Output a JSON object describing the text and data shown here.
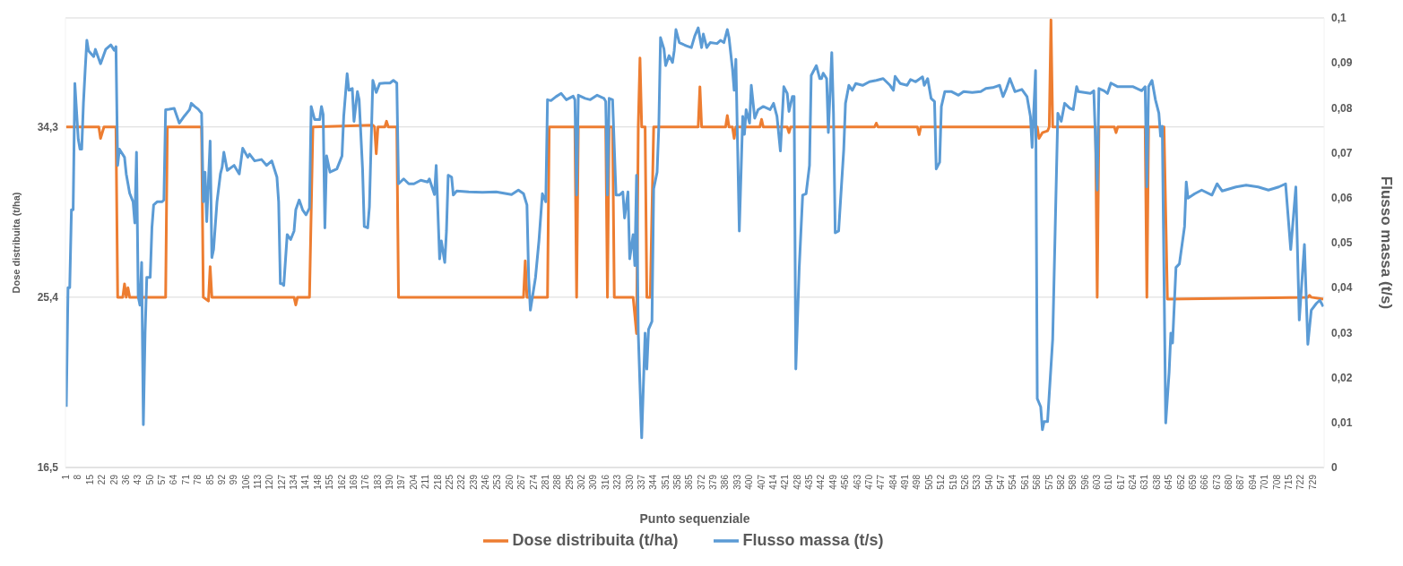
{
  "chart_data": {
    "type": "line",
    "xlabel": "Punto sequenziale",
    "ylabel": "Dose distribuita (t/ha)",
    "y2label": "Flusso massa (t/s)",
    "xlim": [
      0.5,
      735.5
    ],
    "xticks": [
      1,
      8,
      15,
      22,
      29,
      36,
      43,
      50,
      57,
      64,
      71,
      78,
      85,
      92,
      99,
      106,
      113,
      120,
      127,
      134,
      141,
      148,
      155,
      162,
      169,
      176,
      183,
      190,
      197,
      204,
      211,
      218,
      225,
      232,
      239,
      246,
      253,
      260,
      267,
      274,
      281,
      288,
      295,
      302,
      309,
      316,
      323,
      330,
      337,
      344,
      351,
      358,
      365,
      372,
      379,
      386,
      393,
      400,
      407,
      414,
      421,
      428,
      435,
      442,
      449,
      456,
      463,
      470,
      477,
      484,
      491,
      498,
      505,
      512,
      519,
      526,
      533,
      540,
      547,
      554,
      561,
      568,
      575,
      582,
      589,
      596,
      603,
      610,
      617,
      624,
      631,
      638,
      645,
      652,
      659,
      666,
      673,
      680,
      687,
      694,
      701,
      708,
      715,
      722,
      729
    ],
    "ylim": [
      16.5,
      40
    ],
    "yticks": [
      {
        "value": 16.5,
        "label": "16,5"
      },
      {
        "value": 25.4,
        "label": "25,4"
      },
      {
        "value": 34.3,
        "label": "34,3"
      }
    ],
    "y2lim": [
      0,
      0.1
    ],
    "y2ticks": [
      0,
      {
        "value": 0.01,
        "label": "0,01"
      },
      {
        "value": 0.02,
        "label": "0,02"
      },
      {
        "value": 0.03,
        "label": "0,03"
      },
      {
        "value": 0.04,
        "label": "0,04"
      },
      {
        "value": 0.05,
        "label": "0,05"
      },
      {
        "value": 0.06,
        "label": "0,06"
      },
      {
        "value": 0.07,
        "label": "0,07"
      },
      {
        "value": 0.08,
        "label": "0,08"
      },
      {
        "value": 0.09,
        "label": "0,09"
      },
      {
        "value": 0.1,
        "label": "0,1"
      }
    ],
    "grid": "y",
    "legend": "bottom",
    "marker": "none",
    "line_style": "solid",
    "series": [
      {
        "name": "Dose distribuita (t/ha)",
        "color": "#ed7d31",
        "x": [
          1,
          20,
          21,
          23,
          30,
          31,
          34,
          35,
          36,
          37,
          38,
          59,
          60,
          80,
          81,
          84,
          85,
          86,
          134,
          135,
          136,
          143,
          145,
          180,
          181,
          182,
          183,
          187,
          188,
          189,
          194,
          195,
          268,
          269,
          270,
          282,
          283,
          298,
          299,
          300,
          316,
          317,
          318,
          320,
          321,
          332,
          334,
          335,
          336,
          337,
          339,
          340,
          342,
          344,
          370,
          371,
          372,
          386,
          387,
          388,
          390,
          391,
          392,
          406,
          407,
          408,
          422,
          423,
          424,
          473,
          474,
          475,
          498,
          499,
          500,
          568,
          569,
          571,
          574,
          575,
          576,
          577,
          602,
          603,
          604,
          613,
          614,
          615,
          631,
          632,
          633,
          642,
          644,
          726,
          727,
          728,
          735
        ],
        "values": [
          34.3,
          34.3,
          33.7,
          34.3,
          34.3,
          25.4,
          25.4,
          26.1,
          25.4,
          25.9,
          25.4,
          25.4,
          34.3,
          34.3,
          25.4,
          25.2,
          27.0,
          25.4,
          25.4,
          25.0,
          25.4,
          25.4,
          34.3,
          34.4,
          34.3,
          32.9,
          34.3,
          34.3,
          34.6,
          34.3,
          34.3,
          25.4,
          25.4,
          27.3,
          25.4,
          25.4,
          34.3,
          34.3,
          25.4,
          34.3,
          34.3,
          25.4,
          34.3,
          34.3,
          25.4,
          25.4,
          23.5,
          34.3,
          37.9,
          34.3,
          34.3,
          25.4,
          25.4,
          34.3,
          34.3,
          36.4,
          34.3,
          34.3,
          34.9,
          34.3,
          34.3,
          33.7,
          34.3,
          34.3,
          34.7,
          34.3,
          34.3,
          34.0,
          34.3,
          34.3,
          34.5,
          34.3,
          34.3,
          33.9,
          34.3,
          34.3,
          33.7,
          34.0,
          34.1,
          34.3,
          39.9,
          34.3,
          34.3,
          25.4,
          34.3,
          34.3,
          34.0,
          34.3,
          34.3,
          25.4,
          34.3,
          34.3,
          25.3,
          25.4,
          25.5,
          25.4,
          25.3
        ]
      },
      {
        "name": "Flusso massa (t/s)",
        "color": "#5b9bd5",
        "axis": "y2",
        "x": [
          1,
          2,
          3,
          4,
          5,
          6,
          8,
          9,
          10,
          11,
          12,
          13,
          14,
          17,
          18,
          21,
          24,
          27,
          29,
          30,
          31,
          32,
          35,
          36,
          38,
          40,
          41,
          42,
          43,
          44,
          45,
          46,
          47,
          48,
          50,
          51,
          52,
          54,
          57,
          58,
          59,
          61,
          64,
          66,
          67,
          70,
          73,
          74,
          76,
          78,
          80,
          81,
          82,
          83,
          85,
          86,
          87,
          89,
          91,
          92,
          93,
          95,
          99,
          102,
          104,
          107,
          108,
          111,
          115,
          118,
          121,
          124,
          125,
          126,
          127,
          128,
          130,
          132,
          134,
          135,
          137,
          139,
          141,
          143,
          144,
          146,
          149,
          150,
          151,
          152,
          153,
          155,
          159,
          162,
          163,
          165,
          166,
          168,
          169,
          171,
          172,
          174,
          175,
          177,
          178,
          180,
          182,
          184,
          187,
          190,
          192,
          194,
          195,
          198,
          201,
          204,
          208,
          212,
          213,
          216,
          217,
          219,
          220,
          222,
          223,
          224,
          226,
          227,
          229,
          236,
          244,
          252,
          261,
          265,
          268,
          270,
          271,
          272,
          275,
          277,
          279,
          281,
          282,
          284,
          287,
          290,
          293,
          297,
          298,
          299,
          300,
          304,
          307,
          311,
          315,
          316,
          317,
          318,
          320,
          322,
          324,
          326,
          327,
          329,
          330,
          332,
          333,
          334,
          335,
          337,
          339,
          340,
          341,
          343,
          344,
          346,
          347,
          348,
          350,
          351,
          353,
          355,
          356,
          357,
          359,
          363,
          366,
          368,
          370,
          372,
          373,
          375,
          377,
          381,
          383,
          385,
          387,
          388,
          390,
          391,
          392,
          394,
          396,
          397,
          398,
          400,
          401,
          403,
          405,
          408,
          412,
          414,
          416,
          418,
          420,
          422,
          423,
          425,
          426,
          427,
          429,
          431,
          433,
          435,
          436,
          439,
          441,
          442,
          443,
          445,
          446,
          448,
          449,
          450,
          452,
          455,
          456,
          458,
          460,
          462,
          466,
          470,
          474,
          478,
          482,
          484,
          485,
          488,
          492,
          494,
          497,
          501,
          502,
          504,
          506,
          508,
          509,
          511,
          512,
          514,
          518,
          522,
          525,
          530,
          535,
          538,
          542,
          546,
          548,
          550,
          552,
          555,
          559,
          562,
          564,
          565,
          567,
          568,
          570,
          571,
          572,
          574,
          577,
          580,
          582,
          584,
          587,
          589,
          591,
          592,
          599,
          601,
          603,
          604,
          607,
          609,
          611,
          615,
          620,
          624,
          629,
          631,
          632,
          633,
          635,
          637,
          639,
          640,
          641,
          643,
          645,
          646,
          647,
          649,
          651,
          654,
          655,
          656,
          660,
          664,
          670,
          673,
          676,
          684,
          690,
          697,
          703,
          709,
          713,
          716,
          719,
          721,
          724,
          726,
          728,
          731,
          733,
          735
        ],
        "values": [
          0.0135,
          0.04,
          0.04,
          0.0573,
          0.0573,
          0.0854,
          0.073,
          0.0708,
          0.0708,
          0.081,
          0.0883,
          0.095,
          0.0927,
          0.0914,
          0.093,
          0.0898,
          0.093,
          0.094,
          0.0928,
          0.0936,
          0.0672,
          0.0708,
          0.069,
          0.0653,
          0.061,
          0.0591,
          0.0544,
          0.0701,
          0.038,
          0.0361,
          0.0456,
          0.0095,
          0.0299,
          0.0423,
          0.0423,
          0.0533,
          0.0584,
          0.0591,
          0.0591,
          0.0595,
          0.0796,
          0.0797,
          0.0799,
          0.0777,
          0.0766,
          0.0782,
          0.0796,
          0.081,
          0.0803,
          0.0797,
          0.0788,
          0.0591,
          0.0657,
          0.0547,
          0.0726,
          0.0467,
          0.0485,
          0.0591,
          0.0653,
          0.0668,
          0.0701,
          0.0661,
          0.0672,
          0.0653,
          0.071,
          0.069,
          0.0697,
          0.0682,
          0.0685,
          0.0672,
          0.0682,
          0.0646,
          0.0591,
          0.0409,
          0.0409,
          0.0405,
          0.0518,
          0.0507,
          0.0526,
          0.0573,
          0.0595,
          0.0573,
          0.0562,
          0.0577,
          0.0803,
          0.0774,
          0.0774,
          0.0803,
          0.0785,
          0.0533,
          0.0693,
          0.0657,
          0.0664,
          0.0693,
          0.0781,
          0.0876,
          0.0839,
          0.0843,
          0.077,
          0.0836,
          0.0818,
          0.0664,
          0.0536,
          0.0533,
          0.058,
          0.0861,
          0.0834,
          0.0854,
          0.0855,
          0.0855,
          0.0861,
          0.0855,
          0.0631,
          0.0642,
          0.0631,
          0.0631,
          0.0639,
          0.0635,
          0.0642,
          0.0607,
          0.0672,
          0.0464,
          0.0504,
          0.0456,
          0.0526,
          0.065,
          0.0646,
          0.0606,
          0.0615,
          0.0613,
          0.0612,
          0.0613,
          0.0607,
          0.0617,
          0.0609,
          0.0584,
          0.0423,
          0.035,
          0.0423,
          0.0504,
          0.0609,
          0.0591,
          0.0818,
          0.0816,
          0.0825,
          0.0832,
          0.0818,
          0.0826,
          0.0818,
          0.0606,
          0.0828,
          0.0821,
          0.0818,
          0.0828,
          0.0821,
          0.0814,
          0.0606,
          0.0821,
          0.0818,
          0.0606,
          0.0606,
          0.0613,
          0.0555,
          0.0613,
          0.0464,
          0.0518,
          0.0449,
          0.065,
          0.0299,
          0.0066,
          0.0299,
          0.0219,
          0.0307,
          0.0325,
          0.062,
          0.0657,
          0.0759,
          0.0956,
          0.0931,
          0.0894,
          0.0916,
          0.0901,
          0.0927,
          0.0974,
          0.0945,
          0.0938,
          0.0934,
          0.096,
          0.0978,
          0.0934,
          0.0964,
          0.0934,
          0.0945,
          0.0943,
          0.095,
          0.0945,
          0.0974,
          0.0956,
          0.0887,
          0.0839,
          0.0908,
          0.0526,
          0.0781,
          0.0741,
          0.0796,
          0.0766,
          0.085,
          0.0777,
          0.0796,
          0.0803,
          0.0796,
          0.081,
          0.0781,
          0.0704,
          0.0847,
          0.0832,
          0.0792,
          0.0825,
          0.0825,
          0.0219,
          0.0445,
          0.0606,
          0.0609,
          0.0672,
          0.0872,
          0.0894,
          0.0865,
          0.0865,
          0.0877,
          0.0865,
          0.0745,
          0.0923,
          0.0788,
          0.0522,
          0.0526,
          0.0708,
          0.081,
          0.085,
          0.0839,
          0.0854,
          0.085,
          0.0858,
          0.0861,
          0.0865,
          0.085,
          0.0839,
          0.087,
          0.0854,
          0.085,
          0.0863,
          0.0858,
          0.0869,
          0.085,
          0.0865,
          0.0821,
          0.0814,
          0.0664,
          0.0679,
          0.0803,
          0.0836,
          0.0836,
          0.0828,
          0.0836,
          0.0834,
          0.0836,
          0.0843,
          0.0845,
          0.085,
          0.0825,
          0.0843,
          0.0865,
          0.0836,
          0.0841,
          0.0825,
          0.0781,
          0.0712,
          0.0883,
          0.0153,
          0.0135,
          0.0084,
          0.0102,
          0.0102,
          0.0285,
          0.0788,
          0.077,
          0.081,
          0.0799,
          0.0796,
          0.0847,
          0.0836,
          0.0832,
          0.0838,
          0.0617,
          0.0843,
          0.0838,
          0.0832,
          0.0855,
          0.0847,
          0.0847,
          0.0847,
          0.0838,
          0.0847,
          0.0624,
          0.0847,
          0.0861,
          0.0818,
          0.0788,
          0.0737,
          0.0759,
          0.0099,
          0.0212,
          0.0299,
          0.0277,
          0.0445,
          0.0453,
          0.0536,
          0.0635,
          0.0599,
          0.0609,
          0.0617,
          0.0606,
          0.0631,
          0.0615,
          0.0624,
          0.0628,
          0.0624,
          0.0617,
          0.0624,
          0.0631,
          0.0485,
          0.0624,
          0.0328,
          0.0496,
          0.0274,
          0.035,
          0.0365,
          0.0372,
          0.0358
        ]
      }
    ]
  }
}
